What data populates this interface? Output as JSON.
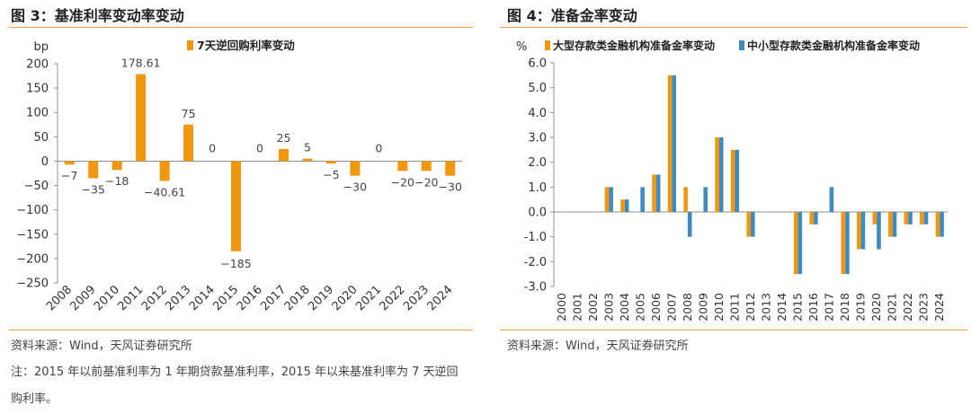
{
  "left": {
    "title": "图 3：基准利率变动率变动",
    "source": "资料来源：Wind，天风证券研究所",
    "note": "注：2015 年以前基准利率为 1 年期贷款基准利率，2015 年以来基准利率为 7 天逆回购利率。"
  },
  "right": {
    "title": "图 4：准备金率变动",
    "source": "资料来源：Wind，天风证券研究所"
  },
  "chart_data": [
    {
      "type": "bar",
      "title": "",
      "ylabel": "bp",
      "xlabel": "",
      "ylim": [
        -250,
        200
      ],
      "yticks": [
        200,
        150,
        100,
        50,
        0,
        -50,
        -100,
        -150,
        -200,
        -250
      ],
      "ytick_labels": [
        "200",
        "150",
        "100",
        "50",
        "0",
        "−50",
        "−100",
        "−150",
        "−200",
        "−250"
      ],
      "legend_position": "top",
      "categories": [
        "2008",
        "2009",
        "2010",
        "2011",
        "2012",
        "2013",
        "2014",
        "2015",
        "2016",
        "2017",
        "2018",
        "2019",
        "2020",
        "2021",
        "2022",
        "2023",
        "2024"
      ],
      "series": [
        {
          "name": "7天逆回购利率变动",
          "color": "#f0960f",
          "values": [
            -7,
            -35,
            -18,
            178.61,
            -40.61,
            75,
            0,
            -185,
            0,
            25,
            5,
            -5,
            -30,
            0,
            -20,
            -20,
            -30
          ],
          "labels": [
            "−7",
            "−35",
            "−18",
            "178.61",
            "−40.61",
            "75",
            "0",
            "−185",
            "0",
            "25",
            "5",
            "−5",
            "−30",
            "0",
            "−20",
            "−20",
            "−30"
          ]
        }
      ]
    },
    {
      "type": "bar",
      "title": "",
      "ylabel": "%",
      "xlabel": "",
      "ylim": [
        -3.0,
        6.0
      ],
      "yticks": [
        6.0,
        5.0,
        4.0,
        3.0,
        2.0,
        1.0,
        0.0,
        -1.0,
        -2.0,
        -3.0
      ],
      "ytick_labels": [
        "6.0",
        "5.0",
        "4.0",
        "3.0",
        "2.0",
        "1.0",
        "0.0",
        "-1.0",
        "-2.0",
        "-3.0"
      ],
      "legend_position": "top",
      "categories": [
        "2000",
        "2001",
        "2002",
        "2003",
        "2004",
        "2005",
        "2006",
        "2007",
        "2008",
        "2009",
        "2010",
        "2011",
        "2012",
        "2013",
        "2014",
        "2015",
        "2016",
        "2017",
        "2018",
        "2019",
        "2020",
        "2021",
        "2022",
        "2023",
        "2024"
      ],
      "series": [
        {
          "name": "大型存款类金融机构准备金率变动",
          "color": "#f0960f",
          "values": [
            0,
            0,
            0,
            1.0,
            0.5,
            0,
            1.5,
            5.5,
            1.0,
            0,
            3.0,
            2.5,
            -1.0,
            0,
            0,
            -2.5,
            -0.5,
            0,
            -2.5,
            -1.5,
            -0.5,
            -1.0,
            -0.5,
            -0.5,
            -1.0
          ]
        },
        {
          "name": "中小型存款类金融机构准备金率变动",
          "color": "#3e8bbf",
          "values": [
            0,
            0,
            0,
            1.0,
            0.5,
            1.0,
            1.5,
            5.5,
            -1.0,
            1.0,
            3.0,
            2.5,
            -1.0,
            0,
            0,
            -2.5,
            -0.5,
            1.0,
            -2.5,
            -1.5,
            -1.5,
            -1.0,
            -0.5,
            -0.5,
            -1.0
          ]
        }
      ]
    }
  ]
}
